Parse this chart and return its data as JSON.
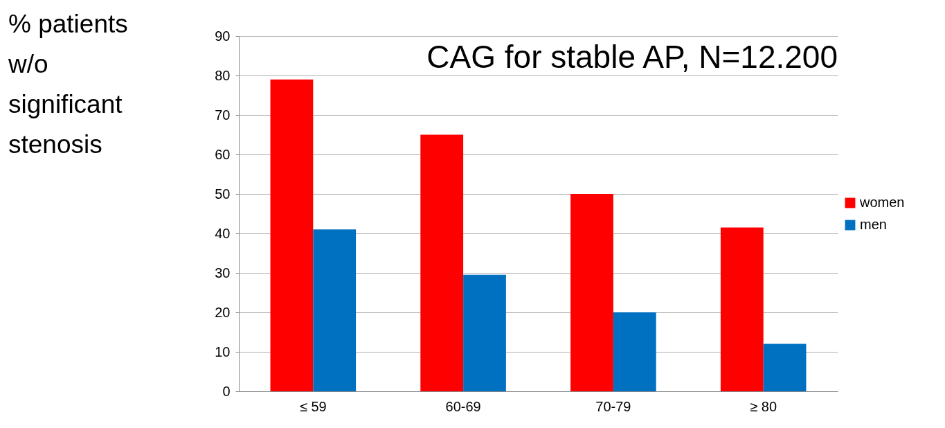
{
  "chart_data": {
    "type": "bar",
    "title": "CAG for stable AP, N=12.200",
    "ylabel": "% patients w/o significant stenosis",
    "categories": [
      "≤ 59",
      "60-69",
      "70-79",
      "≥ 80"
    ],
    "series": [
      {
        "name": "women",
        "color": "#ff0000",
        "values": [
          79,
          65,
          50,
          41.5
        ]
      },
      {
        "name": "men",
        "color": "#0070c0",
        "values": [
          41,
          29.5,
          20,
          12
        ]
      }
    ],
    "ylim": [
      0,
      90
    ],
    "yticks": [
      0,
      10,
      20,
      30,
      40,
      50,
      60,
      70,
      80,
      90
    ],
    "grid": "y",
    "legend": "right"
  }
}
